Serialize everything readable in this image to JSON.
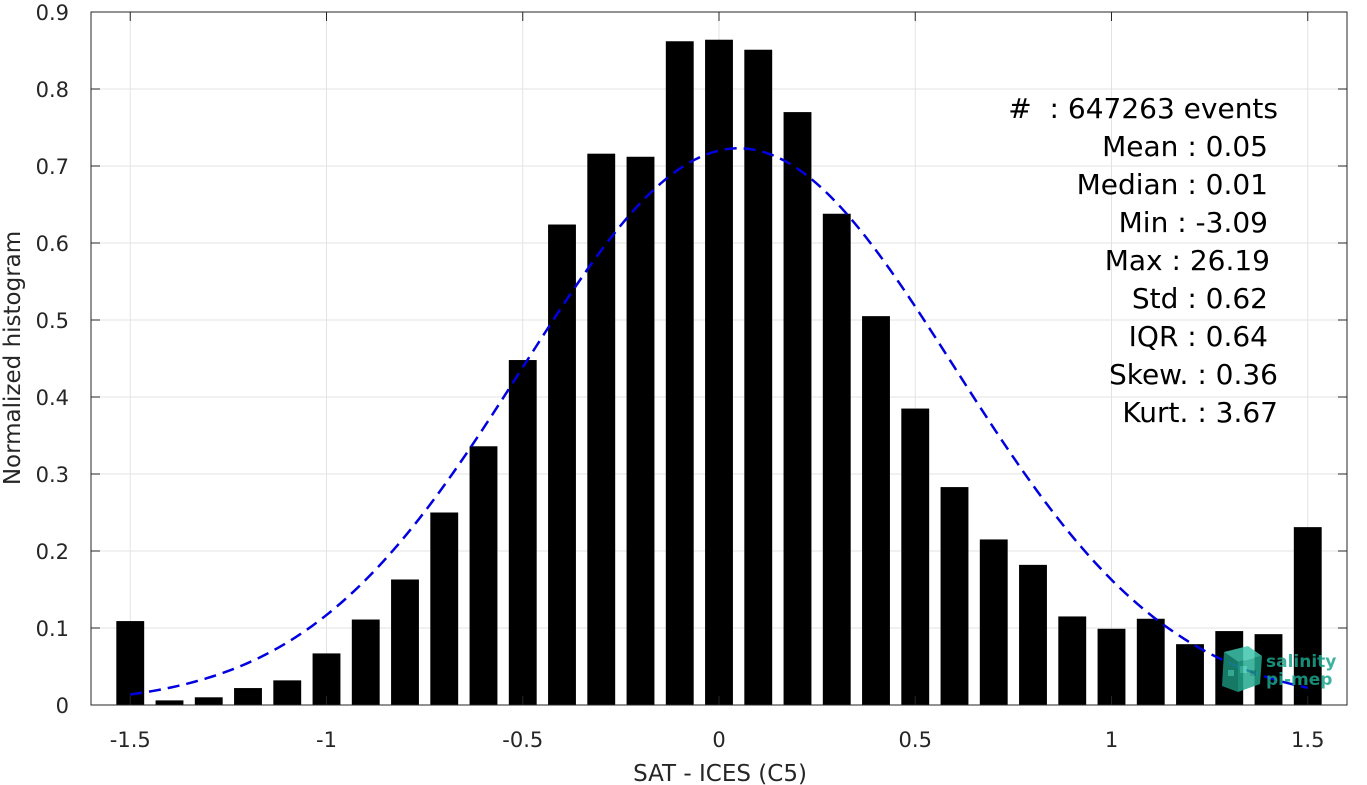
{
  "chart_data": {
    "type": "bar",
    "xlabel": "SAT - ICES (C5)",
    "ylabel": "Normalized histogram",
    "xlim": [
      -1.6,
      1.6
    ],
    "ylim": [
      0,
      0.9
    ],
    "xticks": [
      -1.5,
      -1,
      -0.5,
      0,
      0.5,
      1,
      1.5
    ],
    "xtick_labels": [
      "-1.5",
      "-1",
      "-0.5",
      "0",
      "0.5",
      "1",
      "1.5"
    ],
    "yticks": [
      0,
      0.1,
      0.2,
      0.3,
      0.4,
      0.5,
      0.6,
      0.7,
      0.8,
      0.9
    ],
    "ytick_labels": [
      "0",
      "0.1",
      "0.2",
      "0.3",
      "0.4",
      "0.5",
      "0.6",
      "0.7",
      "0.8",
      "0.9"
    ],
    "grid": true,
    "bar_color": "#000000",
    "fit_color": "#0000e0",
    "bars": {
      "x": [
        -1.5,
        -1.4,
        -1.3,
        -1.2,
        -1.1,
        -1.0,
        -0.9,
        -0.8,
        -0.7,
        -0.6,
        -0.5,
        -0.4,
        -0.3,
        -0.2,
        -0.1,
        0.0,
        0.1,
        0.2,
        0.3,
        0.4,
        0.5,
        0.6,
        0.7,
        0.8,
        0.9,
        1.0,
        1.1,
        1.2,
        1.3,
        1.4,
        1.5
      ],
      "values": [
        0.109,
        0.006,
        0.01,
        0.022,
        0.032,
        0.067,
        0.111,
        0.163,
        0.25,
        0.336,
        0.448,
        0.624,
        0.716,
        0.712,
        0.862,
        0.864,
        0.851,
        0.77,
        0.638,
        0.505,
        0.385,
        0.283,
        0.215,
        0.182,
        0.115,
        0.099,
        0.112,
        0.079,
        0.096,
        0.092,
        0.231
      ]
    },
    "fit_curve": {
      "style": "dashed",
      "mean": 0.05,
      "std": 0.55,
      "peak": 0.723,
      "x_range": [
        -1.5,
        1.5
      ]
    },
    "stats": {
      "events": "#  : 647263 events",
      "mean": "Mean : 0.05",
      "median": "Median : 0.01",
      "min": "Min : -3.09",
      "max": "Max : 26.19",
      "std": "Std : 0.62",
      "iqr": "IQR : 0.64",
      "skew": "Skew. : 0.36",
      "kurt": "Kurt. : 3.67"
    }
  },
  "logo": {
    "line1": "salinity",
    "line2": "pi-mep",
    "color": "#1aa58c"
  }
}
